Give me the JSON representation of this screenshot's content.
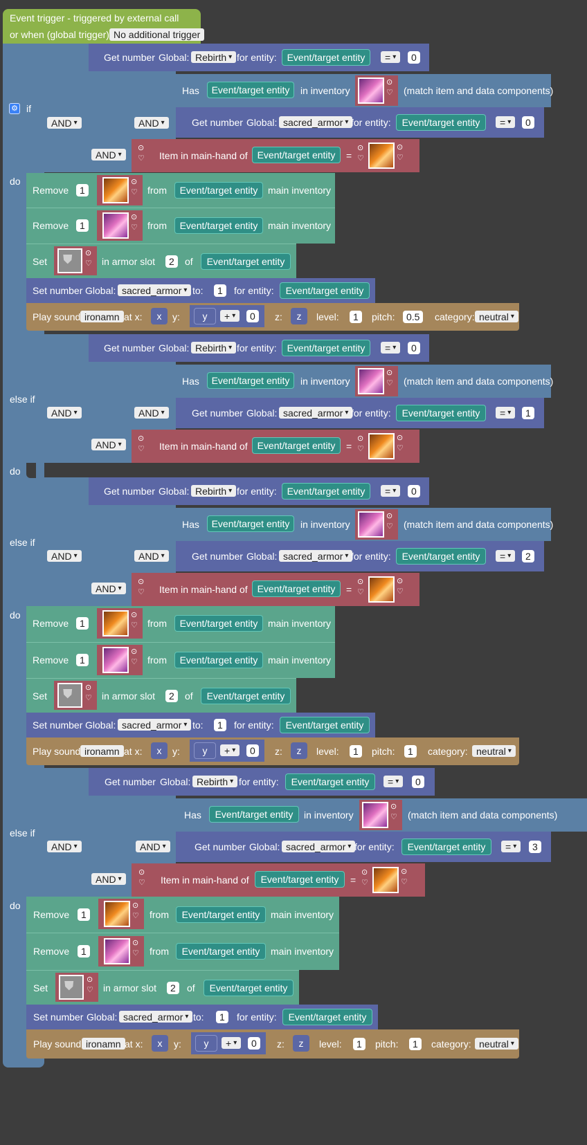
{
  "trigger": {
    "line1": "Event trigger - triggered by external call",
    "line2": "or when (global trigger):",
    "value": "No additional trigger"
  },
  "kw": {
    "if": "if",
    "else_if": "else if",
    "do": "do",
    "and": "AND",
    "get_number": "Get number",
    "global": "Global:",
    "for_entity": "for entity:",
    "eq": "=",
    "has": "Has",
    "in_inventory": "in inventory",
    "match": "(match item and data components)",
    "item_main_hand": "Item in main-hand of",
    "remove": "Remove",
    "from": "from",
    "main_inventory": "main inventory",
    "set": "Set",
    "in_armor_slot": "in armor slot",
    "of": "of",
    "set_number": "Set number",
    "to": "to:",
    "play_sound": "Play sound",
    "at_x": "at x:",
    "y": "y:",
    "z": "z:",
    "level": "level:",
    "pitch": "pitch:",
    "category": "category:",
    "plus": "+"
  },
  "values": {
    "rebirth": "Rebirth",
    "sacred_armor": "sacred_armor",
    "entity": "Event/target entity",
    "zero": "0",
    "one": "1",
    "two": "2",
    "three": "3",
    "pitch_half": "0.5",
    "sound": "ironamn",
    "x": "x",
    "y": "y",
    "z": "z",
    "category": "neutral"
  },
  "icons": {
    "gear": "gear-icon",
    "pink_crystal": "pink-crystal-icon",
    "orange_crystal": "orange-crystal-icon",
    "chestplate": "chestplate-icon"
  },
  "colors": {
    "event": "#8db34a",
    "control": "#5b80a5",
    "logic": "#5b67a5",
    "entity": "#2f8f86",
    "item_block": "#a5535e",
    "action": "#5ba58c",
    "sound": "#a5865b"
  }
}
